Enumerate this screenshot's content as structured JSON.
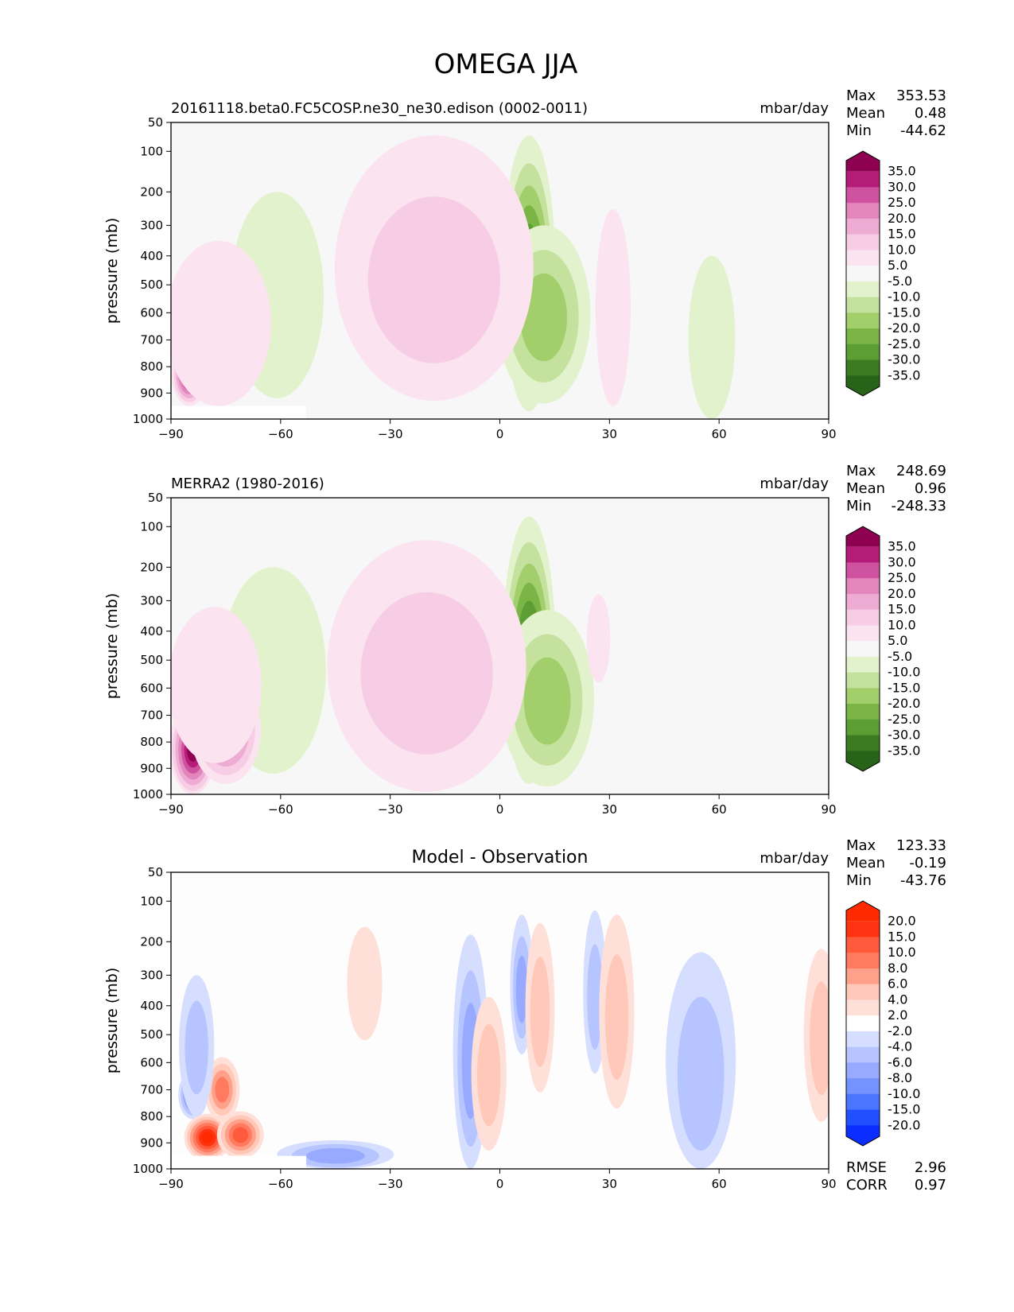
{
  "figure": {
    "title": "OMEGA JJA"
  },
  "colors": {
    "diverging_pg": [
      "#276419",
      "#3b7c23",
      "#5c9e34",
      "#7ab546",
      "#a2cf6c",
      "#c4e29d",
      "#e2f2cc",
      "#f7f7f7",
      "#fbe4f0",
      "#f6cde4",
      "#eeabd3",
      "#e286bc",
      "#cf52a0",
      "#b51c78",
      "#8e0152"
    ],
    "diverging_br": [
      "#0c2dff",
      "#2050ff",
      "#4a76ff",
      "#7593ff",
      "#97aaff",
      "#b6c4ff",
      "#d6deff",
      "#ffffff",
      "#ffe0d8",
      "#ffc8b8",
      "#ffa08a",
      "#ff7a5e",
      "#ff5a3c",
      "#ff3311",
      "#ff2a00"
    ]
  },
  "chart_data": [
    {
      "type": "heatmap",
      "panel": "test",
      "title": "20161118.beta0.FC5COSP.ne30_ne30.edison (0002-0011)",
      "units": "mbar/day",
      "ylabel": "pressure (mb)",
      "xlim": [
        -90,
        90
      ],
      "ylim": [
        1000,
        50
      ],
      "x_ticks": [
        "−90",
        "−60",
        "−30",
        "0",
        "30",
        "60",
        "90"
      ],
      "y_ticks": [
        "50",
        "100",
        "200",
        "300",
        "400",
        "500",
        "600",
        "700",
        "800",
        "900",
        "1000"
      ],
      "stats": {
        "max_label": "Max",
        "max": "353.53",
        "mean_label": "Mean",
        "mean": "0.48",
        "min_label": "Min",
        "min": "-44.62"
      },
      "colorbar_labels": [
        "35.0",
        "30.0",
        "25.0",
        "20.0",
        "15.0",
        "10.0",
        "5.0",
        "-5.0",
        "-10.0",
        "-15.0",
        "-20.0",
        "-25.0",
        "-30.0",
        "-35.0"
      ],
      "features": [
        {
          "lat": 8,
          "p": 520,
          "value": -45,
          "lat_width": 4.5,
          "p_width": 450
        },
        {
          "lat": 12,
          "p": 620,
          "value": -16,
          "lat_width": 8,
          "p_width": 320
        },
        {
          "lat": -21,
          "p": 520,
          "value": 24,
          "lat_width": 10,
          "p_width": 320
        },
        {
          "lat": -18,
          "p": 500,
          "value": 12,
          "lat_width": 17,
          "p_width": 430
        },
        {
          "lat": -64,
          "p": 630,
          "value": -18,
          "lat_width": 4,
          "p_width": 270
        },
        {
          "lat": -61,
          "p": 560,
          "value": -7,
          "lat_width": 8,
          "p_width": 360
        },
        {
          "lat": -85,
          "p": 830,
          "value": 55,
          "lat_width": 3,
          "p_width": 120
        },
        {
          "lat": -77,
          "p": 650,
          "value": 9,
          "lat_width": 9,
          "p_width": 300
        },
        {
          "lat": 31,
          "p": 600,
          "value": 6,
          "lat_width": 3,
          "p_width": 350
        },
        {
          "lat": 58,
          "p": 700,
          "value": -6,
          "lat_width": 4,
          "p_width": 300
        }
      ]
    },
    {
      "type": "heatmap",
      "panel": "reference",
      "title": "MERRA2 (1980-2016)",
      "units": "mbar/day",
      "ylabel": "pressure (mb)",
      "xlim": [
        -90,
        90
      ],
      "ylim": [
        1000,
        50
      ],
      "x_ticks": [
        "−90",
        "−60",
        "−30",
        "0",
        "30",
        "60",
        "90"
      ],
      "y_ticks": [
        "50",
        "100",
        "200",
        "300",
        "400",
        "500",
        "600",
        "700",
        "800",
        "900",
        "1000"
      ],
      "stats": {
        "max_label": "Max",
        "max": "248.69",
        "mean_label": "Mean",
        "mean": "0.96",
        "min_label": "Min",
        "min": "-248.33"
      },
      "colorbar_labels": [
        "35.0",
        "30.0",
        "25.0",
        "20.0",
        "15.0",
        "10.0",
        "5.0",
        "-5.0",
        "-10.0",
        "-15.0",
        "-20.0",
        "-25.0",
        "-30.0",
        "-35.0"
      ],
      "features": [
        {
          "lat": 8,
          "p": 520,
          "value": -45,
          "lat_width": 4.5,
          "p_width": 440
        },
        {
          "lat": 13,
          "p": 650,
          "value": -17,
          "lat_width": 8,
          "p_width": 320
        },
        {
          "lat": -21,
          "p": 580,
          "value": 23,
          "lat_width": 10,
          "p_width": 340
        },
        {
          "lat": -20,
          "p": 560,
          "value": 12,
          "lat_width": 17,
          "p_width": 430
        },
        {
          "lat": -64,
          "p": 640,
          "value": -16,
          "lat_width": 4,
          "p_width": 260
        },
        {
          "lat": -62,
          "p": 560,
          "value": -7,
          "lat_width": 9,
          "p_width": 360
        },
        {
          "lat": -84,
          "p": 830,
          "value": 55,
          "lat_width": 4,
          "p_width": 180
        },
        {
          "lat": -75,
          "p": 760,
          "value": 25,
          "lat_width": 6,
          "p_width": 200
        },
        {
          "lat": -78,
          "p": 600,
          "value": 9,
          "lat_width": 8,
          "p_width": 280
        },
        {
          "lat": 27,
          "p": 430,
          "value": 6,
          "lat_width": 2,
          "p_width": 150
        }
      ]
    },
    {
      "type": "heatmap",
      "panel": "difference",
      "title": "Model - Observation",
      "units": "mbar/day",
      "ylabel": "pressure (mb)",
      "xlim": [
        -90,
        90
      ],
      "ylim": [
        1000,
        50
      ],
      "x_ticks": [
        "−90",
        "−60",
        "−30",
        "0",
        "30",
        "60",
        "90"
      ],
      "y_ticks": [
        "50",
        "100",
        "200",
        "300",
        "400",
        "500",
        "600",
        "700",
        "800",
        "900",
        "1000"
      ],
      "stats": {
        "max_label": "Max",
        "max": "123.33",
        "mean_label": "Mean",
        "mean": "-0.19",
        "min_label": "Min",
        "min": "-43.76"
      },
      "colorbar_labels": [
        "20.0",
        "15.0",
        "10.0",
        "8.0",
        "6.0",
        "4.0",
        "2.0",
        "-2.0",
        "-4.0",
        "-6.0",
        "-8.0",
        "-10.0",
        "-15.0",
        "-20.0"
      ],
      "metrics": {
        "rmse_label": "RMSE",
        "rmse": "2.96",
        "corr_label": "CORR",
        "corr": "0.97"
      },
      "features": [
        {
          "lat": -84,
          "p": 720,
          "value": -13,
          "lat_width": 2.5,
          "p_width": 90
        },
        {
          "lat": -80,
          "p": 880,
          "value": 22,
          "lat_width": 4,
          "p_width": 90
        },
        {
          "lat": -71,
          "p": 870,
          "value": 14,
          "lat_width": 4,
          "p_width": 90
        },
        {
          "lat": -76,
          "p": 700,
          "value": 8,
          "lat_width": 3,
          "p_width": 120
        },
        {
          "lat": -83,
          "p": 550,
          "value": -5,
          "lat_width": 3,
          "p_width": 250
        },
        {
          "lat": -45,
          "p": 950,
          "value": -7,
          "lat_width": 10,
          "p_width": 60
        },
        {
          "lat": -8,
          "p": 600,
          "value": -6,
          "lat_width": 3,
          "p_width": 420
        },
        {
          "lat": -3,
          "p": 650,
          "value": 4,
          "lat_width": 3,
          "p_width": 280
        },
        {
          "lat": 6,
          "p": 350,
          "value": -6,
          "lat_width": 2,
          "p_width": 220
        },
        {
          "lat": 11,
          "p": 430,
          "value": 5,
          "lat_width": 2.5,
          "p_width": 280
        },
        {
          "lat": 26,
          "p": 380,
          "value": -5,
          "lat_width": 2,
          "p_width": 260
        },
        {
          "lat": 32,
          "p": 450,
          "value": 4,
          "lat_width": 3,
          "p_width": 320
        },
        {
          "lat": 55,
          "p": 650,
          "value": -4,
          "lat_width": 6,
          "p_width": 420
        },
        {
          "lat": -37,
          "p": 340,
          "value": 3,
          "lat_width": 3,
          "p_width": 180
        },
        {
          "lat": 88,
          "p": 520,
          "value": 5,
          "lat_width": 3,
          "p_width": 300
        }
      ]
    }
  ]
}
